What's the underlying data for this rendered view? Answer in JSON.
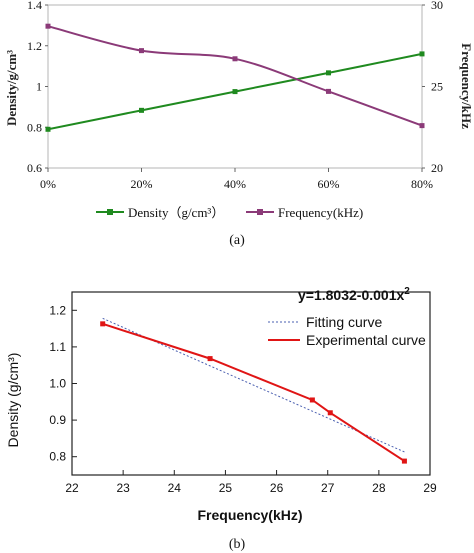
{
  "figure": {
    "panel_a_caption": "(a)",
    "panel_b_caption": "(b)"
  },
  "chart_data": [
    {
      "type": "line",
      "x_categories": [
        "0%",
        "20%",
        "40%",
        "60%",
        "80%"
      ],
      "x": [
        0,
        20,
        40,
        60,
        80
      ],
      "series": [
        {
          "name": "Density（g/cm³）",
          "axis": "left",
          "color": "#1f8a1f",
          "marker": "square",
          "values": [
            0.79,
            0.883,
            0.975,
            1.067,
            1.16
          ]
        },
        {
          "name": "Frequency(kHz)",
          "axis": "right",
          "color": "#8b3a78",
          "marker": "square",
          "values": [
            28.7,
            27.2,
            26.7,
            24.7,
            22.6
          ]
        }
      ],
      "y_left": {
        "label": "Density/g/cm³",
        "ylim": [
          0.6,
          1.4
        ],
        "ticks": [
          0.6,
          0.8,
          1,
          1.2,
          1.4
        ]
      },
      "y_right": {
        "label": "Frequency/kHz",
        "ylim": [
          20,
          30
        ],
        "ticks": [
          20,
          25,
          30
        ]
      },
      "legend_placement": "bottom"
    },
    {
      "type": "line",
      "xlabel": "Frequency(kHz)",
      "ylabel": "Density (g/cm³)",
      "xlim": [
        22,
        29
      ],
      "ylim": [
        0.75,
        1.25
      ],
      "x_ticks": [
        22,
        23,
        24,
        25,
        26,
        27,
        28,
        29
      ],
      "y_ticks": [
        0.8,
        0.9,
        1.0,
        1.1,
        1.2
      ],
      "annotation": {
        "base": "y=1.8032-0.001x",
        "sup": "2"
      },
      "series": [
        {
          "name": "Fitting curve",
          "style": "dotted",
          "color": "#4a5fb0",
          "x": [
            22.6,
            28.5
          ],
          "y": [
            1.178,
            0.813
          ]
        },
        {
          "name": "Experimental curve",
          "style": "solid",
          "color": "#e01515",
          "x": [
            22.6,
            24.7,
            26.7,
            27.05,
            28.5
          ],
          "y": [
            1.163,
            1.068,
            0.955,
            0.92,
            0.788
          ]
        }
      ],
      "legend_placement": "top-right"
    }
  ]
}
